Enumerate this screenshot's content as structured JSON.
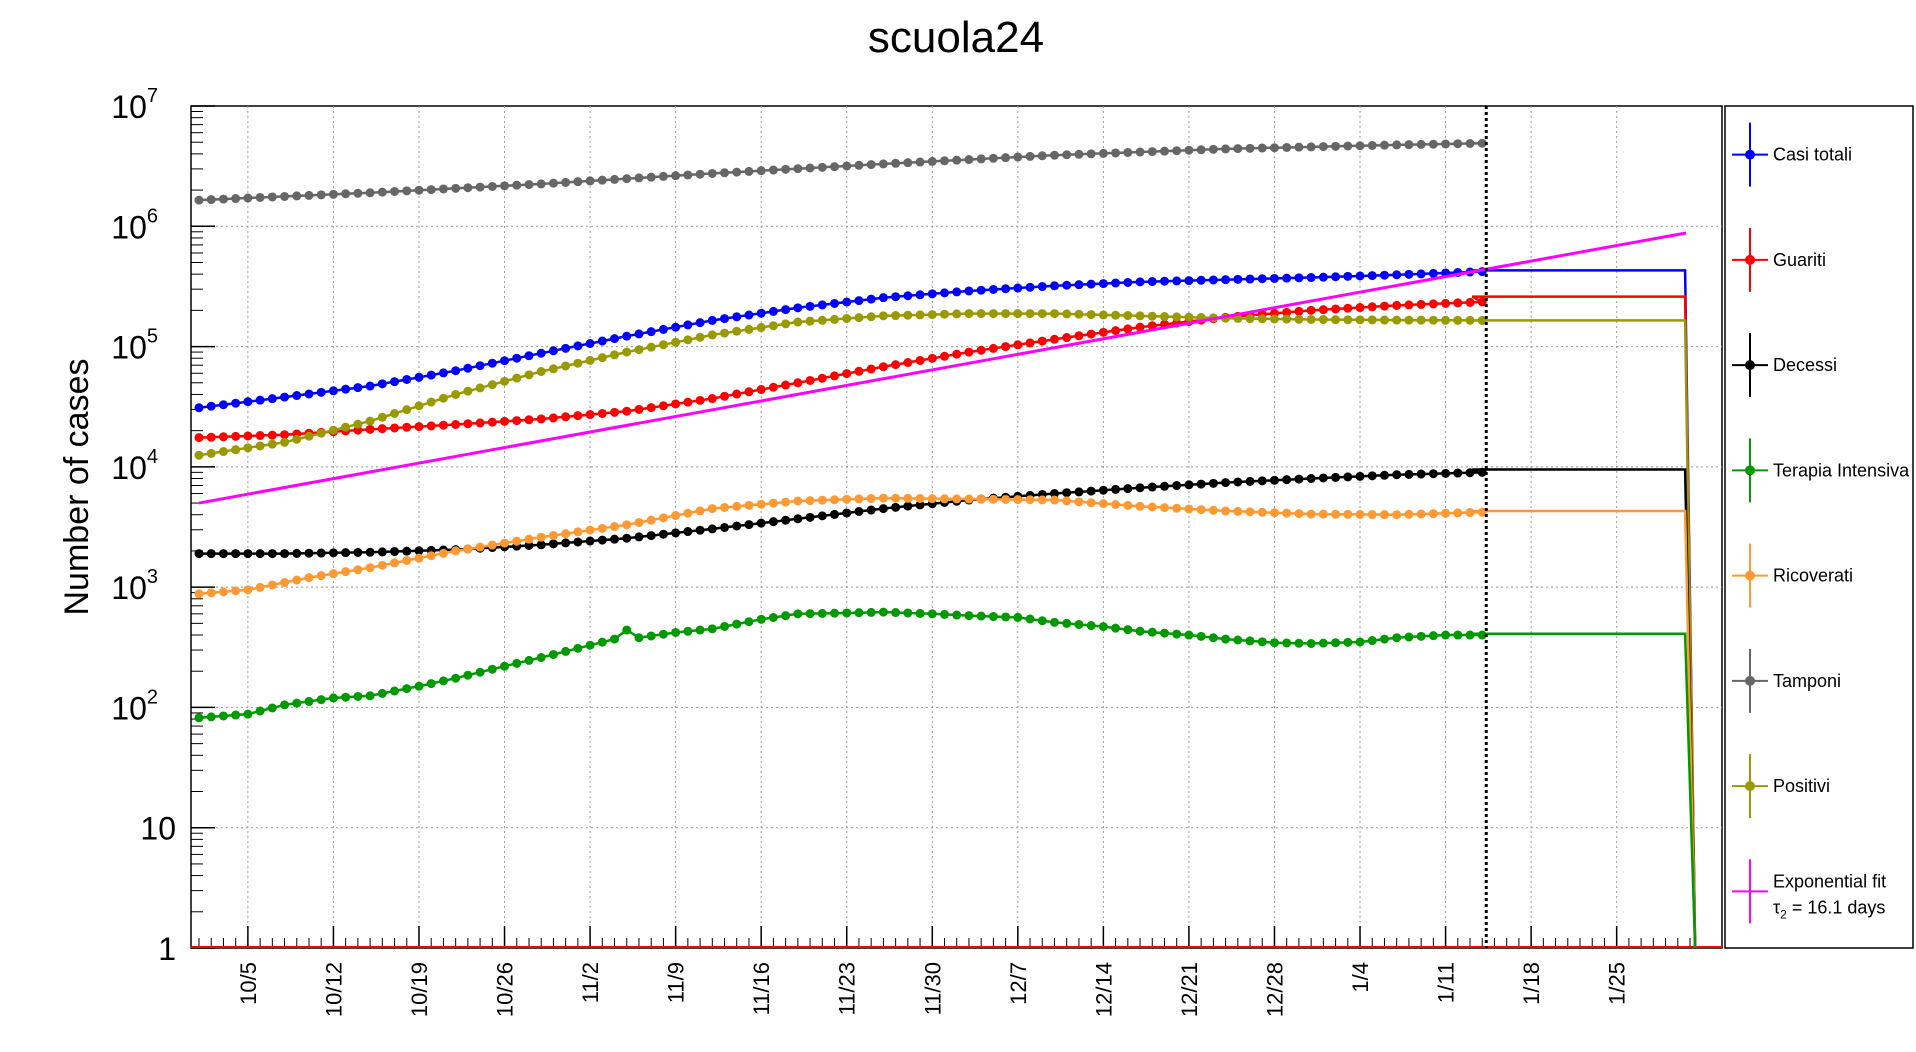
{
  "chart_data": {
    "type": "line",
    "title": "scuola24",
    "ylabel": "Number of cases",
    "xlabel": "",
    "yscale": "log",
    "ylim": [
      1,
      10000000
    ],
    "grid": true,
    "legend_position": "right",
    "x_start": "2020-10-01",
    "x_end": "2021-01-31",
    "data_end": "2021-01-14",
    "vline": "2021-01-14",
    "x_tick_labels": [
      "10/5",
      "10/12",
      "10/19",
      "10/26",
      "11/2",
      "11/9",
      "11/16",
      "11/23",
      "11/30",
      "12/7",
      "12/14",
      "12/21",
      "12/28",
      "1/4",
      "1/11",
      "1/18",
      "1/25"
    ],
    "x_ticks": [
      "2020-10-05",
      "2020-10-12",
      "2020-10-19",
      "2020-10-26",
      "2020-11-02",
      "2020-11-09",
      "2020-11-16",
      "2020-11-23",
      "2020-11-30",
      "2020-12-07",
      "2020-12-14",
      "2020-12-21",
      "2020-12-28",
      "2021-01-04",
      "2021-01-11",
      "2021-01-18",
      "2021-01-25"
    ],
    "y_tick_labels": [
      {
        "value": 1,
        "base": "1",
        "exp": ""
      },
      {
        "value": 10,
        "base": "10",
        "exp": ""
      },
      {
        "value": 100,
        "base": "10",
        "exp": "2"
      },
      {
        "value": 1000,
        "base": "10",
        "exp": "3"
      },
      {
        "value": 10000,
        "base": "10",
        "exp": "4"
      },
      {
        "value": 100000,
        "base": "10",
        "exp": "5"
      },
      {
        "value": 1000000,
        "base": "10",
        "exp": "6"
      },
      {
        "value": 10000000,
        "base": "10",
        "exp": "7"
      }
    ],
    "series": [
      {
        "name": "Tamponi",
        "color": "#666666",
        "points": [
          [
            "2020-10-01",
            1650000
          ],
          [
            "2020-10-15",
            1900000
          ],
          [
            "2020-10-29",
            2250000
          ],
          [
            "2020-11-12",
            2750000
          ],
          [
            "2020-11-26",
            3300000
          ],
          [
            "2020-12-10",
            3900000
          ],
          [
            "2020-12-24",
            4400000
          ],
          [
            "2021-01-07",
            4750000
          ],
          [
            "2021-01-14",
            4900000
          ]
        ],
        "hold": null
      },
      {
        "name": "Casi totali",
        "color": "#0000ff",
        "points": [
          [
            "2020-10-01",
            31000
          ],
          [
            "2020-10-08",
            38000
          ],
          [
            "2020-10-15",
            47000
          ],
          [
            "2020-10-22",
            63000
          ],
          [
            "2020-10-29",
            88000
          ],
          [
            "2020-11-05",
            122000
          ],
          [
            "2020-11-12",
            165000
          ],
          [
            "2020-11-19",
            210000
          ],
          [
            "2020-11-26",
            255000
          ],
          [
            "2020-12-03",
            290000
          ],
          [
            "2020-12-10",
            320000
          ],
          [
            "2020-12-17",
            345000
          ],
          [
            "2020-12-24",
            360000
          ],
          [
            "2020-12-31",
            375000
          ],
          [
            "2021-01-07",
            395000
          ],
          [
            "2021-01-14",
            420000
          ]
        ],
        "hold": 430000
      },
      {
        "name": "Guariti",
        "color": "#ff0000",
        "points": [
          [
            "2020-10-01",
            17500
          ],
          [
            "2020-10-08",
            18500
          ],
          [
            "2020-10-15",
            20500
          ],
          [
            "2020-10-22",
            22500
          ],
          [
            "2020-10-29",
            25000
          ],
          [
            "2020-11-05",
            29000
          ],
          [
            "2020-11-12",
            37000
          ],
          [
            "2020-11-19",
            50000
          ],
          [
            "2020-11-26",
            68000
          ],
          [
            "2020-12-03",
            90000
          ],
          [
            "2020-12-10",
            115000
          ],
          [
            "2020-12-17",
            145000
          ],
          [
            "2020-12-24",
            175000
          ],
          [
            "2020-12-31",
            200000
          ],
          [
            "2021-01-07",
            220000
          ],
          [
            "2021-01-14",
            235000
          ]
        ],
        "hold": 260000
      },
      {
        "name": "Positivi",
        "color": "#999900",
        "points": [
          [
            "2020-10-01",
            12500
          ],
          [
            "2020-10-08",
            16000
          ],
          [
            "2020-10-15",
            24000
          ],
          [
            "2020-10-22",
            40000
          ],
          [
            "2020-10-29",
            62000
          ],
          [
            "2020-11-05",
            90000
          ],
          [
            "2020-11-12",
            125000
          ],
          [
            "2020-11-19",
            160000
          ],
          [
            "2020-11-26",
            180000
          ],
          [
            "2020-12-03",
            188000
          ],
          [
            "2020-12-10",
            188000
          ],
          [
            "2020-12-17",
            180000
          ],
          [
            "2020-12-24",
            172000
          ],
          [
            "2020-12-31",
            168000
          ],
          [
            "2021-01-07",
            166000
          ],
          [
            "2021-01-14",
            165000
          ]
        ],
        "hold": 165000
      },
      {
        "name": "Decessi",
        "color": "#000000",
        "points": [
          [
            "2020-10-01",
            1900
          ],
          [
            "2020-10-08",
            1900
          ],
          [
            "2020-10-15",
            1950
          ],
          [
            "2020-10-22",
            2050
          ],
          [
            "2020-10-29",
            2250
          ],
          [
            "2020-11-05",
            2550
          ],
          [
            "2020-11-12",
            3050
          ],
          [
            "2020-11-19",
            3700
          ],
          [
            "2020-11-26",
            4500
          ],
          [
            "2020-12-03",
            5300
          ],
          [
            "2020-12-10",
            6000
          ],
          [
            "2020-12-17",
            6700
          ],
          [
            "2020-12-24",
            7400
          ],
          [
            "2020-12-31",
            8000
          ],
          [
            "2021-01-07",
            8600
          ],
          [
            "2021-01-14",
            9000
          ]
        ],
        "hold": 9500
      },
      {
        "name": "Ricoverati",
        "color": "#ff9933",
        "points": [
          [
            "2020-10-01",
            880
          ],
          [
            "2020-10-05",
            950
          ],
          [
            "2020-10-10",
            1200
          ],
          [
            "2020-10-15",
            1450
          ],
          [
            "2020-10-22",
            2000
          ],
          [
            "2020-10-29",
            2600
          ],
          [
            "2020-11-05",
            3300
          ],
          [
            "2020-11-12",
            4500
          ],
          [
            "2020-11-19",
            5200
          ],
          [
            "2020-11-26",
            5500
          ],
          [
            "2020-12-03",
            5400
          ],
          [
            "2020-12-10",
            5300
          ],
          [
            "2020-12-17",
            4700
          ],
          [
            "2020-12-24",
            4300
          ],
          [
            "2020-12-31",
            4050
          ],
          [
            "2021-01-07",
            4000
          ],
          [
            "2021-01-14",
            4200
          ]
        ],
        "hold": 4300
      },
      {
        "name": "Terapia Intensiva",
        "color": "#009900",
        "points": [
          [
            "2020-10-01",
            82
          ],
          [
            "2020-10-05",
            88
          ],
          [
            "2020-10-08",
            105
          ],
          [
            "2020-10-12",
            120
          ],
          [
            "2020-10-15",
            125
          ],
          [
            "2020-10-19",
            150
          ],
          [
            "2020-10-22",
            175
          ],
          [
            "2020-10-26",
            220
          ],
          [
            "2020-10-29",
            260
          ],
          [
            "2020-11-01",
            310
          ],
          [
            "2020-11-04",
            370
          ],
          [
            "2020-11-05",
            440
          ],
          [
            "2020-11-06",
            380
          ],
          [
            "2020-11-09",
            420
          ],
          [
            "2020-11-12",
            450
          ],
          [
            "2020-11-16",
            540
          ],
          [
            "2020-11-19",
            600
          ],
          [
            "2020-11-23",
            610
          ],
          [
            "2020-11-26",
            620
          ],
          [
            "2020-11-30",
            600
          ],
          [
            "2020-12-03",
            580
          ],
          [
            "2020-12-07",
            560
          ],
          [
            "2020-12-10",
            510
          ],
          [
            "2020-12-14",
            470
          ],
          [
            "2020-12-17",
            430
          ],
          [
            "2020-12-21",
            400
          ],
          [
            "2020-12-24",
            370
          ],
          [
            "2020-12-28",
            345
          ],
          [
            "2020-12-31",
            340
          ],
          [
            "2021-01-04",
            350
          ],
          [
            "2021-01-07",
            380
          ],
          [
            "2021-01-11",
            400
          ],
          [
            "2021-01-14",
            400
          ]
        ],
        "hold": 410
      },
      {
        "name": "Exponential fit",
        "subtitle": "τ2 = 16.1 days",
        "color": "#ff00ff",
        "fit": {
          "start": [
            "2020-10-01",
            5000
          ],
          "end": [
            "2021-01-31",
            880000
          ]
        }
      }
    ],
    "legend": [
      {
        "name": "Casi totali",
        "color": "#0000ff"
      },
      {
        "name": "Guariti",
        "color": "#ff0000"
      },
      {
        "name": "Decessi",
        "color": "#000000"
      },
      {
        "name": "Terapia Intensiva",
        "color": "#009900"
      },
      {
        "name": "Ricoverati",
        "color": "#ff9933"
      },
      {
        "name": "Tamponi",
        "color": "#666666"
      },
      {
        "name": "Positivi",
        "color": "#999900"
      },
      {
        "name": "Exponential fit",
        "sub_prefix": "τ",
        "sub_index": "2",
        "sub_rest": " = 16.1 days",
        "color": "#ff00ff"
      }
    ]
  }
}
